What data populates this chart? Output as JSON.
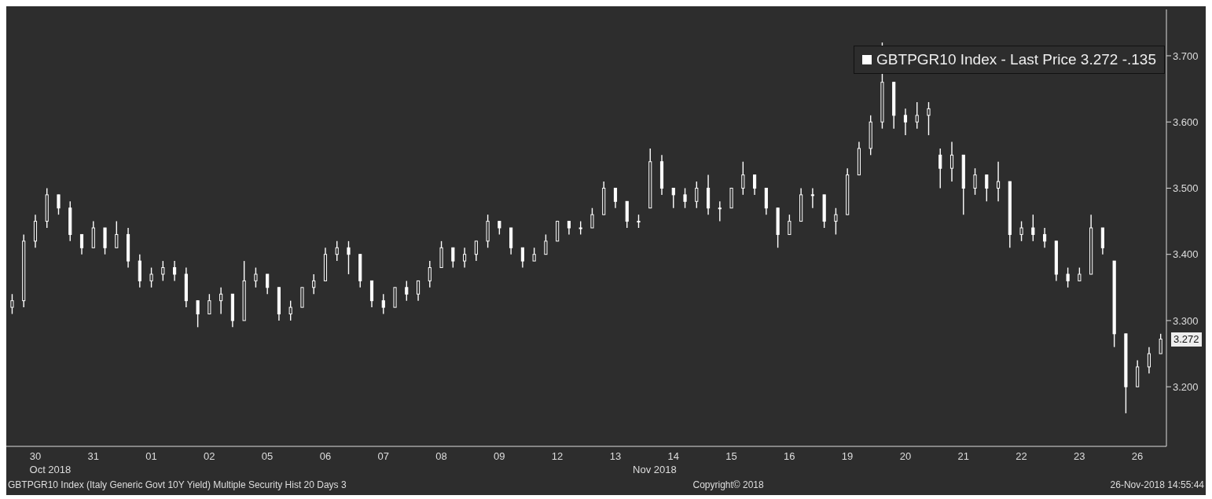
{
  "chart_data": {
    "type": "candlestick",
    "categories": [
      null,
      null,
      "30",
      null,
      null,
      null,
      null,
      "31",
      null,
      null,
      null,
      null,
      "01",
      null,
      null,
      null,
      null,
      "02",
      null,
      null,
      null,
      null,
      "05",
      null,
      null,
      null,
      null,
      "06",
      null,
      null,
      null,
      null,
      "07",
      null,
      null,
      null,
      null,
      "08",
      null,
      null,
      null,
      null,
      "09",
      null,
      null,
      null,
      null,
      "12",
      null,
      null,
      null,
      null,
      "13",
      null,
      null,
      null,
      null,
      "14",
      null,
      null,
      null,
      null,
      "15",
      null,
      null,
      null,
      null,
      "16",
      null,
      null,
      null,
      null,
      "19",
      null,
      null,
      null,
      null,
      "20",
      null,
      null,
      null,
      null,
      "21",
      null,
      null,
      null,
      null,
      "22",
      null,
      null,
      null,
      null,
      "23",
      null,
      null,
      null,
      null,
      "26",
      null,
      null
    ],
    "series": [
      {
        "name": "GBTPGR10 Index - Last Price 3.272  -.135",
        "color": "#ffffff",
        "ohlc": [
          [
            3.32,
            3.34,
            3.31,
            3.33
          ],
          [
            3.33,
            3.43,
            3.32,
            3.42
          ],
          [
            3.42,
            3.46,
            3.41,
            3.45
          ],
          [
            3.45,
            3.5,
            3.44,
            3.49
          ],
          [
            3.49,
            3.49,
            3.46,
            3.47
          ],
          [
            3.47,
            3.48,
            3.42,
            3.43
          ],
          [
            3.43,
            3.43,
            3.4,
            3.41
          ],
          [
            3.41,
            3.45,
            3.41,
            3.44
          ],
          [
            3.44,
            3.44,
            3.4,
            3.41
          ],
          [
            3.41,
            3.45,
            3.41,
            3.43
          ],
          [
            3.43,
            3.44,
            3.38,
            3.39
          ],
          [
            3.39,
            3.4,
            3.35,
            3.36
          ],
          [
            3.36,
            3.38,
            3.35,
            3.37
          ],
          [
            3.37,
            3.39,
            3.36,
            3.38
          ],
          [
            3.38,
            3.39,
            3.36,
            3.37
          ],
          [
            3.37,
            3.38,
            3.32,
            3.33
          ],
          [
            3.33,
            3.33,
            3.29,
            3.31
          ],
          [
            3.31,
            3.34,
            3.31,
            3.33
          ],
          [
            3.33,
            3.35,
            3.31,
            3.34
          ],
          [
            3.34,
            3.34,
            3.29,
            3.3
          ],
          [
            3.3,
            3.39,
            3.3,
            3.36
          ],
          [
            3.36,
            3.38,
            3.35,
            3.37
          ],
          [
            3.37,
            3.37,
            3.34,
            3.35
          ],
          [
            3.35,
            3.35,
            3.3,
            3.31
          ],
          [
            3.31,
            3.33,
            3.3,
            3.32
          ],
          [
            3.32,
            3.35,
            3.32,
            3.35
          ],
          [
            3.35,
            3.37,
            3.34,
            3.36
          ],
          [
            3.36,
            3.41,
            3.36,
            3.4
          ],
          [
            3.4,
            3.42,
            3.39,
            3.41
          ],
          [
            3.41,
            3.42,
            3.37,
            3.4
          ],
          [
            3.4,
            3.4,
            3.35,
            3.36
          ],
          [
            3.36,
            3.36,
            3.32,
            3.33
          ],
          [
            3.33,
            3.34,
            3.31,
            3.32
          ],
          [
            3.32,
            3.35,
            3.32,
            3.35
          ],
          [
            3.35,
            3.36,
            3.33,
            3.34
          ],
          [
            3.34,
            3.36,
            3.33,
            3.36
          ],
          [
            3.36,
            3.39,
            3.35,
            3.38
          ],
          [
            3.38,
            3.42,
            3.38,
            3.41
          ],
          [
            3.41,
            3.41,
            3.38,
            3.39
          ],
          [
            3.39,
            3.41,
            3.38,
            3.4
          ],
          [
            3.4,
            3.42,
            3.39,
            3.42
          ],
          [
            3.42,
            3.46,
            3.41,
            3.45
          ],
          [
            3.45,
            3.45,
            3.43,
            3.44
          ],
          [
            3.44,
            3.44,
            3.4,
            3.41
          ],
          [
            3.41,
            3.41,
            3.38,
            3.39
          ],
          [
            3.39,
            3.41,
            3.39,
            3.4
          ],
          [
            3.4,
            3.43,
            3.4,
            3.42
          ],
          [
            3.42,
            3.45,
            3.42,
            3.45
          ],
          [
            3.45,
            3.45,
            3.43,
            3.44
          ],
          [
            3.44,
            3.45,
            3.43,
            3.44
          ],
          [
            3.44,
            3.47,
            3.44,
            3.46
          ],
          [
            3.46,
            3.51,
            3.46,
            3.5
          ],
          [
            3.5,
            3.5,
            3.47,
            3.48
          ],
          [
            3.48,
            3.48,
            3.44,
            3.45
          ],
          [
            3.45,
            3.46,
            3.44,
            3.45
          ],
          [
            3.47,
            3.56,
            3.47,
            3.54
          ],
          [
            3.54,
            3.55,
            3.49,
            3.5
          ],
          [
            3.5,
            3.5,
            3.47,
            3.49
          ],
          [
            3.49,
            3.5,
            3.47,
            3.48
          ],
          [
            3.48,
            3.51,
            3.47,
            3.5
          ],
          [
            3.5,
            3.52,
            3.46,
            3.47
          ],
          [
            3.47,
            3.48,
            3.45,
            3.47
          ],
          [
            3.47,
            3.5,
            3.47,
            3.5
          ],
          [
            3.5,
            3.54,
            3.49,
            3.52
          ],
          [
            3.52,
            3.52,
            3.49,
            3.5
          ],
          [
            3.5,
            3.5,
            3.46,
            3.47
          ],
          [
            3.47,
            3.47,
            3.41,
            3.43
          ],
          [
            3.43,
            3.46,
            3.43,
            3.45
          ],
          [
            3.45,
            3.5,
            3.45,
            3.49
          ],
          [
            3.49,
            3.5,
            3.47,
            3.49
          ],
          [
            3.49,
            3.49,
            3.44,
            3.45
          ],
          [
            3.45,
            3.47,
            3.43,
            3.46
          ],
          [
            3.46,
            3.53,
            3.46,
            3.52
          ],
          [
            3.52,
            3.57,
            3.52,
            3.56
          ],
          [
            3.56,
            3.61,
            3.55,
            3.6
          ],
          [
            3.6,
            3.72,
            3.59,
            3.66
          ],
          [
            3.66,
            3.66,
            3.59,
            3.61
          ],
          [
            3.61,
            3.62,
            3.58,
            3.6
          ],
          [
            3.6,
            3.63,
            3.59,
            3.61
          ],
          [
            3.61,
            3.63,
            3.58,
            3.62
          ],
          [
            3.55,
            3.56,
            3.5,
            3.53
          ],
          [
            3.53,
            3.57,
            3.51,
            3.55
          ],
          [
            3.55,
            3.55,
            3.46,
            3.5
          ],
          [
            3.5,
            3.53,
            3.49,
            3.52
          ],
          [
            3.52,
            3.52,
            3.48,
            3.5
          ],
          [
            3.5,
            3.54,
            3.48,
            3.51
          ],
          [
            3.51,
            3.51,
            3.41,
            3.43
          ],
          [
            3.43,
            3.45,
            3.42,
            3.44
          ],
          [
            3.44,
            3.46,
            3.42,
            3.43
          ],
          [
            3.43,
            3.44,
            3.41,
            3.42
          ],
          [
            3.42,
            3.42,
            3.36,
            3.37
          ],
          [
            3.37,
            3.38,
            3.35,
            3.36
          ],
          [
            3.36,
            3.38,
            3.36,
            3.37
          ],
          [
            3.37,
            3.46,
            3.37,
            3.44
          ],
          [
            3.44,
            3.44,
            3.4,
            3.41
          ],
          [
            3.39,
            3.39,
            3.26,
            3.28
          ],
          [
            3.28,
            3.28,
            3.16,
            3.2
          ],
          [
            3.2,
            3.24,
            3.2,
            3.23
          ],
          [
            3.23,
            3.26,
            3.22,
            3.25
          ],
          [
            3.25,
            3.28,
            3.25,
            3.272
          ]
        ]
      }
    ],
    "ylim": [
      3.11,
      3.77
    ],
    "yticks": [
      {
        "value": 3.2,
        "label": "3.200"
      },
      {
        "value": 3.3,
        "label": "3.300"
      },
      {
        "value": 3.4,
        "label": "3.400"
      },
      {
        "value": 3.5,
        "label": "3.500"
      },
      {
        "value": 3.6,
        "label": "3.600"
      },
      {
        "value": 3.7,
        "label": "3.700"
      }
    ],
    "legend": "top right",
    "grid": false,
    "annotations": [
      "Oct 2018",
      "Nov 2018",
      "GBTPGR10 Index (Italy Generic Govt 10Y Yield) Multiple Security Hist  20 Days 3",
      "Copyright© 2018",
      "26-Nov-2018 14:55:44",
      "3.272"
    ]
  }
}
